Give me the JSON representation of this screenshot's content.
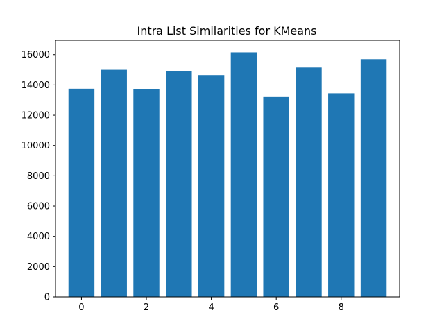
{
  "chart_data": {
    "type": "bar",
    "title": "Intra List Similarities for KMeans",
    "xlabel": "",
    "ylabel": "",
    "categories": [
      0,
      1,
      2,
      3,
      4,
      5,
      6,
      7,
      8,
      9
    ],
    "values": [
      13750,
      15000,
      13700,
      14900,
      14650,
      16150,
      13200,
      15150,
      13450,
      15700
    ],
    "xlim": [
      -0.8,
      9.8
    ],
    "ylim": [
      0,
      16950
    ],
    "xticks": [
      0,
      2,
      4,
      6,
      8
    ],
    "yticks": [
      0,
      2000,
      4000,
      6000,
      8000,
      10000,
      12000,
      14000,
      16000
    ],
    "bar_color": "#1f77b4",
    "grid": false,
    "legend": "none"
  }
}
